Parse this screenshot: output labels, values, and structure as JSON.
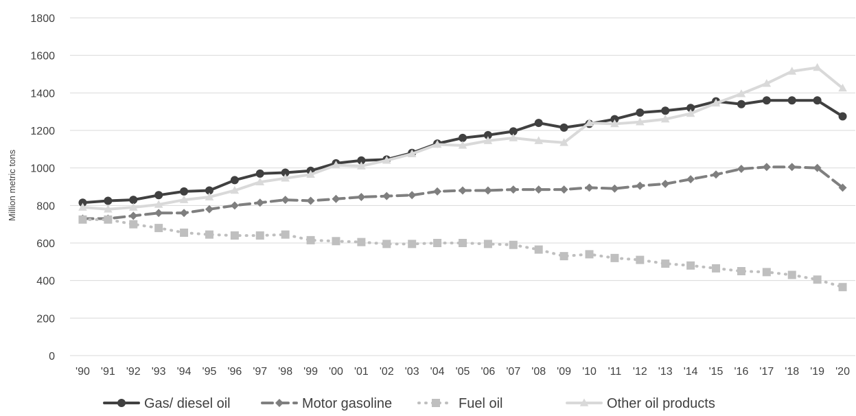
{
  "chart_data": {
    "type": "line",
    "title": "",
    "xlabel": "",
    "ylabel": "Million metric tons",
    "ylim": [
      0,
      1800
    ],
    "yticks": [
      0,
      200,
      400,
      600,
      800,
      1000,
      1200,
      1400,
      1600,
      1800
    ],
    "grid": "horizontal",
    "legend_position": "bottom",
    "categories": [
      "'90",
      "'91",
      "'92",
      "'93",
      "'94",
      "'95",
      "'96",
      "'97",
      "'98",
      "'99",
      "'00",
      "'01",
      "'02",
      "'03",
      "'04",
      "'05",
      "'06",
      "'07",
      "'08",
      "'09",
      "'10",
      "'11",
      "'12",
      "'13",
      "'14",
      "'15",
      "'16",
      "'17",
      "'18",
      "'19",
      "'20"
    ],
    "series": [
      {
        "name": "Gas/ diesel oil",
        "color": "#404040",
        "line_style": "solid",
        "marker": "circle",
        "values": [
          815,
          825,
          830,
          855,
          875,
          880,
          935,
          970,
          975,
          985,
          1025,
          1040,
          1045,
          1080,
          1130,
          1160,
          1175,
          1195,
          1240,
          1215,
          1235,
          1260,
          1295,
          1305,
          1320,
          1355,
          1340,
          1360,
          1360,
          1360,
          1275
        ]
      },
      {
        "name": "Motor gasoline",
        "color": "#7f7f7f",
        "line_style": "dashed",
        "marker": "diamond",
        "values": [
          730,
          730,
          745,
          760,
          760,
          780,
          800,
          815,
          830,
          825,
          835,
          845,
          850,
          855,
          875,
          880,
          880,
          885,
          885,
          885,
          895,
          890,
          905,
          915,
          940,
          965,
          995,
          1005,
          1005,
          1000,
          895
        ]
      },
      {
        "name": "Fuel oil",
        "color": "#bfbfbf",
        "line_style": "dotted",
        "marker": "square",
        "values": [
          725,
          725,
          700,
          680,
          655,
          645,
          640,
          640,
          645,
          615,
          610,
          605,
          595,
          595,
          600,
          600,
          595,
          590,
          565,
          530,
          540,
          520,
          510,
          490,
          480,
          465,
          450,
          445,
          430,
          405,
          365
        ]
      },
      {
        "name": "Other oil products",
        "color": "#d9d9d9",
        "line_style": "solid",
        "marker": "triangle",
        "values": [
          790,
          780,
          790,
          805,
          830,
          845,
          880,
          925,
          945,
          965,
          1015,
          1010,
          1040,
          1075,
          1125,
          1120,
          1145,
          1160,
          1145,
          1135,
          1240,
          1235,
          1245,
          1260,
          1290,
          1345,
          1395,
          1450,
          1515,
          1535,
          1425
        ]
      }
    ]
  }
}
